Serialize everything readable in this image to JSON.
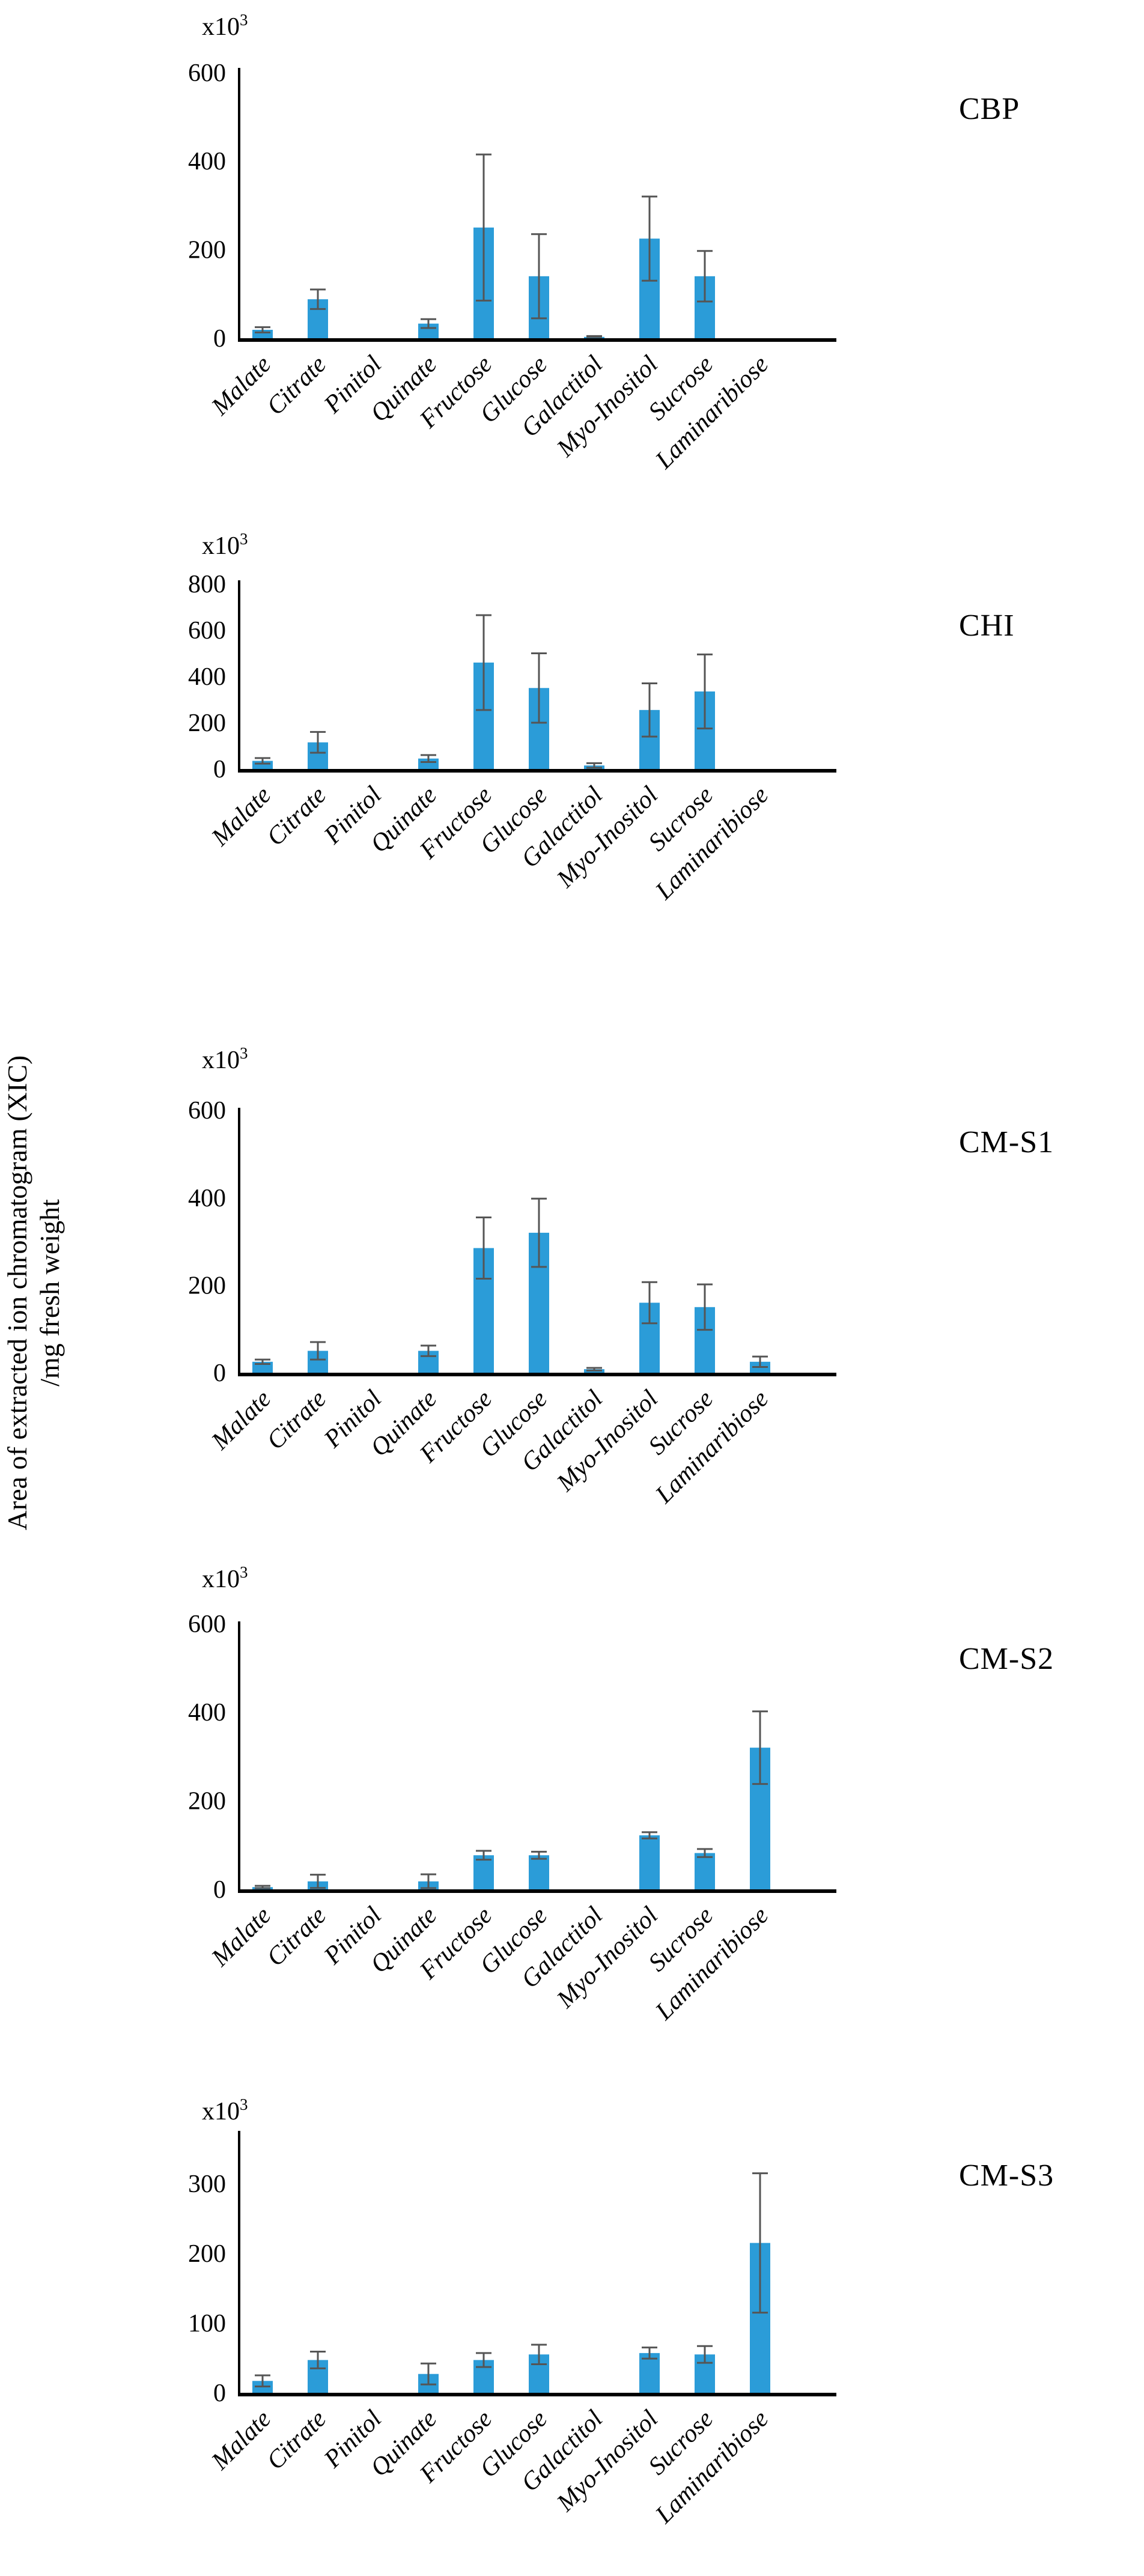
{
  "figure": {
    "background": "#FFFFFF",
    "y_axis_label_line1": "Area of extracted ion chromatogram (XIC)",
    "y_axis_label_line2": "/mg fresh weight",
    "y_scale_base": "x10",
    "y_scale_exponent": "3"
  },
  "colors": {
    "bar_fill": "#2B9CD8",
    "error_bar": "#555555",
    "axis": "#000000",
    "text": "#000000"
  },
  "categories": [
    "Malate",
    "Citrate",
    "Pinitol",
    "Quinate",
    "Fructose",
    "Glucose",
    "Galactitol",
    "Myo-Inositol",
    "Sucrose",
    "Laminaribiose"
  ],
  "chart_data": [
    {
      "type": "bar",
      "title": "CBP",
      "unit_note": "x10³",
      "xlabel": "",
      "ylabel": "Area of extracted ion chromatogram (XIC) /mg fresh weight",
      "ylim": [
        0,
        600
      ],
      "yticks": [
        0,
        200,
        400,
        600
      ],
      "grid": false,
      "categories": [
        "Malate",
        "Citrate",
        "Pinitol",
        "Quinate",
        "Fructose",
        "Glucose",
        "Galactitol",
        "Myo-Inositol",
        "Sucrose",
        "Laminaribiose"
      ],
      "values": [
        19,
        88,
        0,
        33,
        250,
        140,
        3,
        225,
        140,
        0
      ],
      "errors": [
        6,
        22,
        0,
        10,
        165,
        95,
        2,
        95,
        57,
        0
      ]
    },
    {
      "type": "bar",
      "title": "CHI",
      "unit_note": "x10³",
      "xlabel": "",
      "ylabel": "Area of extracted ion chromatogram (XIC) /mg fresh weight",
      "ylim": [
        0,
        800
      ],
      "yticks": [
        0,
        200,
        400,
        600,
        800
      ],
      "grid": false,
      "categories": [
        "Malate",
        "Citrate",
        "Pinitol",
        "Quinate",
        "Fructose",
        "Glucose",
        "Galactitol",
        "Myo-Inositol",
        "Sucrose",
        "Laminaribiose"
      ],
      "values": [
        35,
        115,
        0,
        45,
        460,
        350,
        15,
        255,
        335,
        0
      ],
      "errors": [
        12,
        45,
        0,
        15,
        205,
        150,
        10,
        115,
        160,
        0
      ]
    },
    {
      "type": "bar",
      "title": "CM-S1",
      "unit_note": "x10³",
      "xlabel": "",
      "ylabel": "Area of extracted ion chromatogram (XIC) /mg fresh weight",
      "ylim": [
        0,
        600
      ],
      "yticks": [
        0,
        200,
        400,
        600
      ],
      "grid": false,
      "categories": [
        "Malate",
        "Citrate",
        "Pinitol",
        "Quinate",
        "Fructose",
        "Glucose",
        "Galactitol",
        "Myo-Inositol",
        "Sucrose",
        "Laminaribiose"
      ],
      "values": [
        25,
        50,
        0,
        50,
        285,
        320,
        8,
        160,
        150,
        25
      ],
      "errors": [
        5,
        20,
        0,
        12,
        70,
        78,
        3,
        47,
        52,
        12
      ]
    },
    {
      "type": "bar",
      "title": "CM-S2",
      "unit_note": "x10³",
      "xlabel": "",
      "ylabel": "Area of extracted ion chromatogram (XIC) /mg fresh weight",
      "ylim": [
        0,
        600
      ],
      "yticks": [
        0,
        200,
        400,
        600
      ],
      "grid": false,
      "categories": [
        "Malate",
        "Citrate",
        "Pinitol",
        "Quinate",
        "Fructose",
        "Glucose",
        "Galactitol",
        "Myo-Inositol",
        "Sucrose",
        "Laminaribiose"
      ],
      "values": [
        5,
        18,
        0,
        18,
        77,
        77,
        0,
        122,
        82,
        320
      ],
      "errors": [
        3,
        15,
        0,
        16,
        10,
        8,
        0,
        7,
        9,
        82
      ]
    },
    {
      "type": "bar",
      "title": "CM-S3",
      "unit_note": "x10³",
      "xlabel": "",
      "ylabel": "Area of extracted ion chromatogram (XIC) /mg fresh weight",
      "ylim": [
        0,
        300
      ],
      "yticks": [
        0,
        100,
        200,
        300
      ],
      "grid": false,
      "categories": [
        "Malate",
        "Citrate",
        "Pinitol",
        "Quinate",
        "Fructose",
        "Glucose",
        "Galactitol",
        "Myo-Inositol",
        "Sucrose",
        "Laminaribiose"
      ],
      "values": [
        17,
        47,
        0,
        27,
        47,
        55,
        0,
        57,
        55,
        215
      ],
      "errors": [
        8,
        12,
        0,
        15,
        10,
        14,
        0,
        8,
        12,
        100
      ]
    }
  ]
}
